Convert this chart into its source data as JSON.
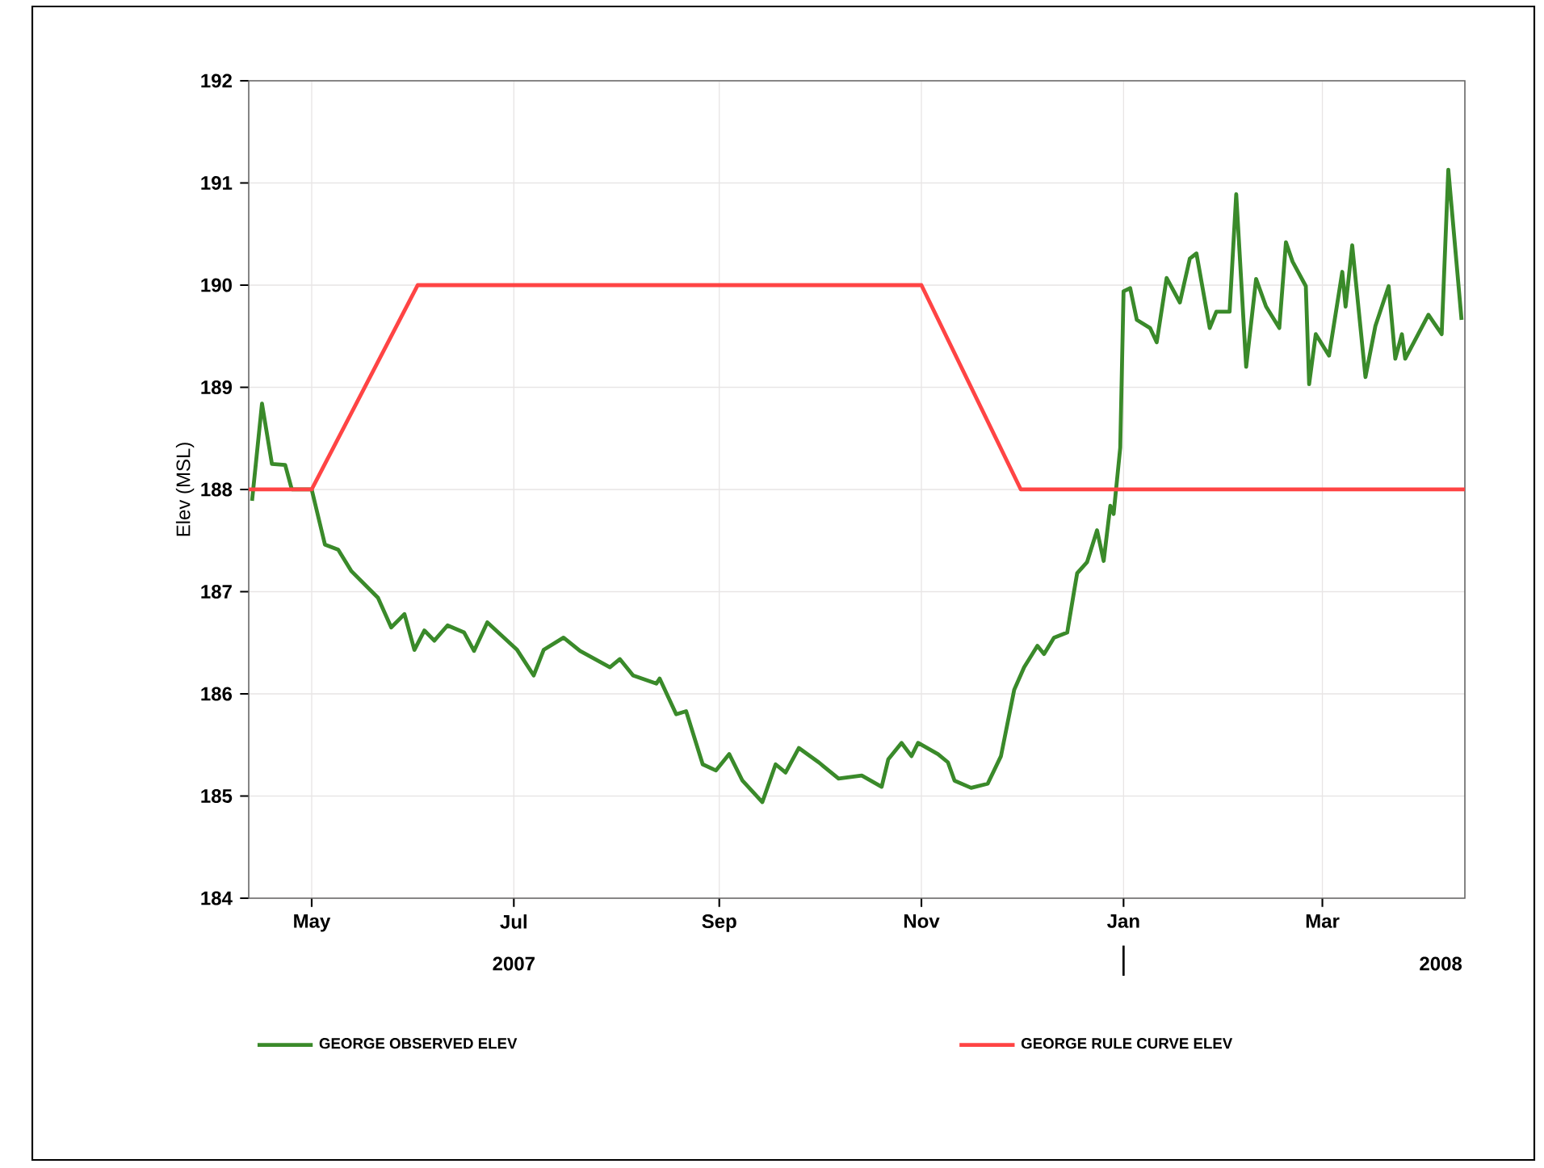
{
  "chart_data": {
    "type": "line",
    "ylabel": "Elev (MSL)",
    "xlim": [
      "2007-04-12",
      "2008-04-13"
    ],
    "ylim": [
      184,
      192
    ],
    "xticks": [
      {
        "value": "2007-05-01",
        "label": "May"
      },
      {
        "value": "2007-07-01",
        "label": "Jul"
      },
      {
        "value": "2007-09-01",
        "label": "Sep"
      },
      {
        "value": "2007-11-01",
        "label": "Nov"
      },
      {
        "value": "2008-01-01",
        "label": "Jan"
      },
      {
        "value": "2008-03-01",
        "label": "Mar"
      }
    ],
    "yticks": [
      184,
      185,
      186,
      187,
      188,
      189,
      190,
      191,
      192
    ],
    "grid": true,
    "legend": "bottom",
    "marker": "none",
    "line_style": "solid",
    "annotations": [
      "2007",
      "2008"
    ],
    "series": [
      {
        "name": "GEORGE OBSERVED ELEV",
        "color": "#3a8a2a",
        "x": [
          "2007-04-13",
          "2007-04-16",
          "2007-04-19",
          "2007-04-23",
          "2007-04-25",
          "2007-05-01",
          "2007-05-05",
          "2007-05-09",
          "2007-05-13",
          "2007-05-21",
          "2007-05-25",
          "2007-05-29",
          "2007-06-01",
          "2007-06-04",
          "2007-06-07",
          "2007-06-11",
          "2007-06-16",
          "2007-06-19",
          "2007-06-23",
          "2007-07-02",
          "2007-07-07",
          "2007-07-10",
          "2007-07-16",
          "2007-07-21",
          "2007-07-30",
          "2007-08-02",
          "2007-08-06",
          "2007-08-13",
          "2007-08-14",
          "2007-08-19",
          "2007-08-22",
          "2007-08-27",
          "2007-08-31",
          "2007-09-04",
          "2007-09-08",
          "2007-09-14",
          "2007-09-18",
          "2007-09-21",
          "2007-09-25",
          "2007-10-01",
          "2007-10-07",
          "2007-10-14",
          "2007-10-20",
          "2007-10-22",
          "2007-10-26",
          "2007-10-29",
          "2007-10-31",
          "2007-11-06",
          "2007-11-09",
          "2007-11-11",
          "2007-11-16",
          "2007-11-21",
          "2007-11-25",
          "2007-11-29",
          "2007-12-02",
          "2007-12-06",
          "2007-12-08",
          "2007-12-11",
          "2007-12-15",
          "2007-12-17",
          "2007-12-18",
          "2007-12-21",
          "2007-12-24",
          "2007-12-26",
          "2007-12-28",
          "2007-12-29",
          "2007-12-31",
          "2008-01-01",
          "2008-01-03",
          "2008-01-05",
          "2008-01-09",
          "2008-01-11",
          "2008-01-14",
          "2008-01-18",
          "2008-01-21",
          "2008-01-23",
          "2008-01-27",
          "2008-01-29",
          "2008-02-02",
          "2008-02-04",
          "2008-02-07",
          "2008-02-10",
          "2008-02-13",
          "2008-02-17",
          "2008-02-19",
          "2008-02-21",
          "2008-02-25",
          "2008-02-26",
          "2008-02-28",
          "2008-03-03",
          "2008-03-07",
          "2008-03-08",
          "2008-03-10",
          "2008-03-14",
          "2008-03-17",
          "2008-03-21",
          "2008-03-23",
          "2008-03-25",
          "2008-03-26",
          "2008-04-02",
          "2008-04-06",
          "2008-04-08",
          "2008-04-12"
        ],
        "values": [
          187.89,
          188.84,
          188.25,
          188.24,
          188.0,
          188.0,
          187.46,
          187.41,
          187.2,
          186.94,
          186.65,
          186.78,
          186.43,
          186.62,
          186.52,
          186.67,
          186.6,
          186.42,
          186.7,
          186.43,
          186.18,
          186.43,
          186.55,
          186.42,
          186.26,
          186.34,
          186.18,
          186.1,
          186.15,
          185.8,
          185.83,
          185.31,
          185.25,
          185.41,
          185.15,
          184.94,
          185.31,
          185.23,
          185.47,
          185.33,
          185.17,
          185.2,
          185.09,
          185.36,
          185.52,
          185.39,
          185.52,
          185.41,
          185.33,
          185.15,
          185.08,
          185.12,
          185.39,
          186.04,
          186.26,
          186.47,
          186.39,
          186.55,
          186.6,
          186.99,
          187.18,
          187.29,
          187.6,
          187.3,
          187.84,
          187.76,
          188.41,
          189.94,
          189.97,
          189.66,
          189.58,
          189.44,
          190.07,
          189.83,
          190.26,
          190.31,
          189.58,
          189.74,
          189.74,
          190.89,
          189.2,
          190.06,
          189.79,
          189.58,
          190.42,
          190.23,
          189.99,
          189.03,
          189.52,
          189.31,
          190.13,
          189.79,
          190.39,
          189.1,
          189.6,
          189.99,
          189.28,
          189.52,
          189.28,
          189.71,
          189.52,
          191.13,
          189.66
        ]
      },
      {
        "name": "GEORGE RULE CURVE ELEV",
        "color": "#ff4444",
        "x": [
          "2007-04-12",
          "2007-05-01",
          "2007-06-02",
          "2007-11-01",
          "2007-12-01",
          "2008-04-13"
        ],
        "values": [
          188,
          188,
          190,
          190,
          188,
          188
        ]
      }
    ]
  }
}
